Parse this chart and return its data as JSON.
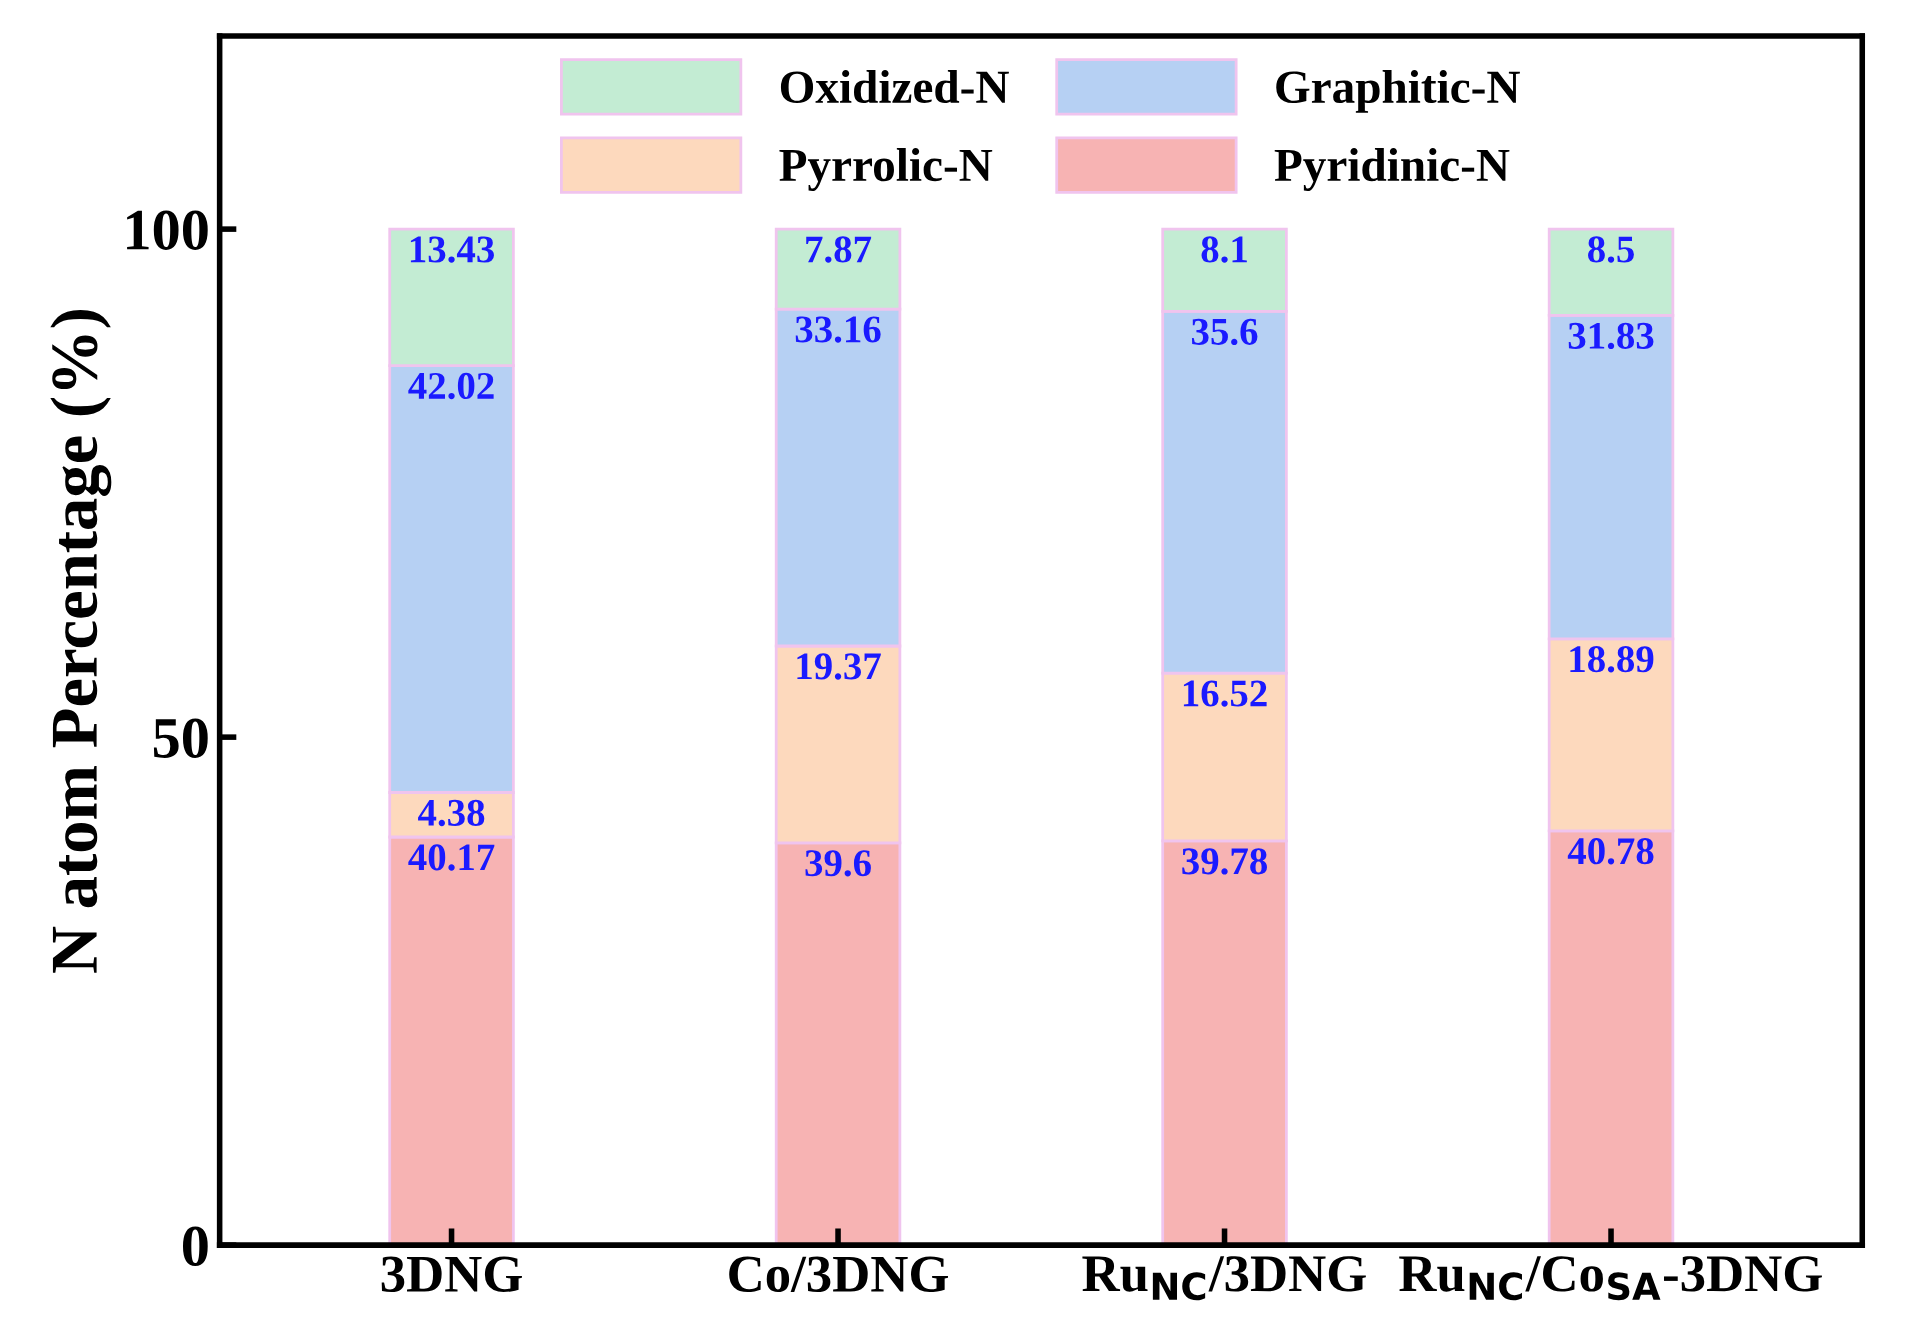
{
  "chart_data": {
    "type": "bar",
    "stacked": true,
    "ylabel": "N atom Percentage (%)",
    "categories": [
      "3DNG",
      "Co/3DNG",
      "Ru$_{NC}$/3DNG",
      "Ru$_{NC}$/Co$_{SA}$-3DNG"
    ],
    "series": [
      {
        "name": "Pyridinic-N",
        "color": "#f7b3b3",
        "values": [
          40.17,
          39.6,
          39.78,
          40.78
        ]
      },
      {
        "name": "Pyrrolic-N",
        "color": "#fdd9bd",
        "values": [
          4.38,
          19.37,
          16.52,
          18.89
        ]
      },
      {
        "name": "Graphitic-N",
        "color": "#b6d0f3",
        "values": [
          42.02,
          33.16,
          35.6,
          31.83
        ]
      },
      {
        "name": "Oxidized-N",
        "color": "#c3ecd3",
        "values": [
          13.43,
          7.87,
          8.1,
          8.5
        ]
      }
    ],
    "ylim": [
      0,
      119
    ],
    "yticks": [
      0,
      50,
      100
    ],
    "data_labels": true,
    "legend": "top",
    "grid": false
  }
}
